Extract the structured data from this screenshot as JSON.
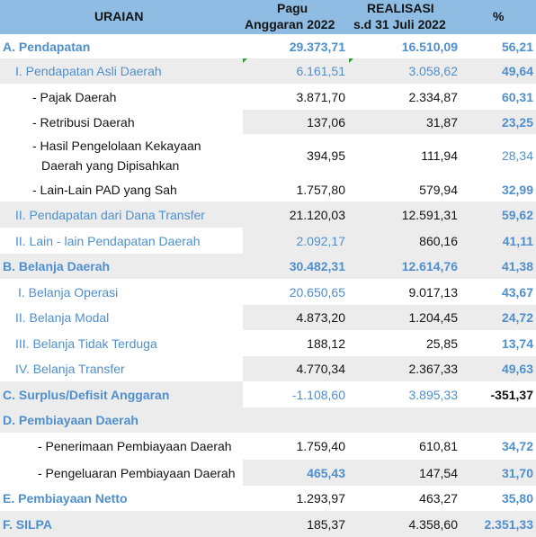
{
  "header": {
    "uraian": "URAIAN",
    "pagu_line1": "Pagu",
    "pagu_line2": "Anggaran 2022",
    "realisasi_line1": "REALISASI",
    "realisasi_line2": "s.d 31 Juli 2022",
    "percent": "%"
  },
  "rows": [
    {
      "label": "A. Pendapatan",
      "pagu": "29.373,71",
      "realisasi": "16.510,09",
      "pct": "56,21"
    },
    {
      "label": "I. Pendapatan Asli Daerah",
      "pagu": "6.161,51",
      "realisasi": "3.058,62",
      "pct": "49,64"
    },
    {
      "label": "- Pajak Daerah",
      "pagu": "3.871,70",
      "realisasi": "2.334,87",
      "pct": "60,31"
    },
    {
      "label": "- Retribusi Daerah",
      "pagu": "137,06",
      "realisasi": "31,87",
      "pct": "23,25"
    },
    {
      "label": "- Hasil Pengelolaan Kekayaan",
      "label2": "Daerah yang Dipisahkan",
      "pagu": "394,95",
      "realisasi": "111,94",
      "pct": "28,34"
    },
    {
      "label": "- Lain-Lain PAD yang Sah",
      "pagu": "1.757,80",
      "realisasi": "579,94",
      "pct": "32,99"
    },
    {
      "label": "II. Pendapatan dari Dana Transfer",
      "pagu": "21.120,03",
      "realisasi": "12.591,31",
      "pct": "59,62"
    },
    {
      "label": "II. Lain - lain Pendapatan Daerah",
      "pagu": "2.092,17",
      "realisasi": "860,16",
      "pct": "41,11"
    },
    {
      "label": "B. Belanja Daerah",
      "pagu": "30.482,31",
      "realisasi": "12.614,76",
      "pct": "41,38"
    },
    {
      "label": "I. Belanja Operasi",
      "pagu": "20.650,65",
      "realisasi": "9.017,13",
      "pct": "43,67"
    },
    {
      "label": "II. Belanja Modal",
      "pagu": "4.873,20",
      "realisasi": "1.204,45",
      "pct": "24,72"
    },
    {
      "label": "III. Belanja Tidak Terduga",
      "pagu": "188,12",
      "realisasi": "25,85",
      "pct": "13,74"
    },
    {
      "label": "IV. Belanja Transfer",
      "pagu": "4.770,34",
      "realisasi": "2.367,33",
      "pct": "49,63"
    },
    {
      "label": "C. Surplus/Defisit Anggaran",
      "pagu": "-1.108,60",
      "realisasi": "3.895,33",
      "pct": "-351,37"
    },
    {
      "label": "D. Pembiayaan Daerah",
      "pagu": "",
      "realisasi": "",
      "pct": ""
    },
    {
      "label": "- Penerimaan Pembiayaan Daerah",
      "pagu": "1.759,40",
      "realisasi": "610,81",
      "pct": "34,72"
    },
    {
      "label": "- Pengeluaran Pembiayaan Daerah",
      "pagu": "465,43",
      "realisasi": "147,54",
      "pct": "31,70"
    },
    {
      "label": "E. Pembiayaan Netto",
      "pagu": "1.293,97",
      "realisasi": "463,27",
      "pct": "35,80"
    },
    {
      "label": "F. SILPA",
      "pagu": "185,37",
      "realisasi": "4.358,60",
      "pct": "2.351,33"
    }
  ],
  "colors": {
    "header_bg": "#8ebce3",
    "accent_blue": "#4f8fcd",
    "row_gray": "#ececec",
    "text_dark": "#141414"
  }
}
